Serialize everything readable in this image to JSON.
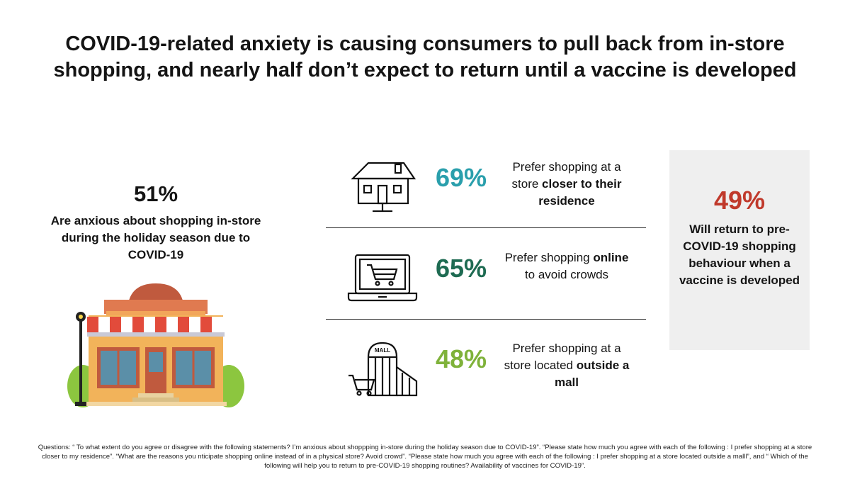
{
  "title": "COVID-19-related anxiety is causing consumers to pull back from in-store shopping, and nearly half don’t expect to return until a vaccine is developed",
  "left_stat": {
    "percent": "51%",
    "description": "Are anxious about shopping in-store during the holiday season due to COVID-19",
    "icon": "storefront-icon"
  },
  "rows": [
    {
      "icon": "house-icon",
      "percent": "69%",
      "color": "#2a9fac",
      "text_pre": "Prefer shopping at a store ",
      "text_bold": "closer to their residence",
      "text_post": ""
    },
    {
      "icon": "laptop-cart-icon",
      "percent": "65%",
      "color": "#1e6b52",
      "text_pre": "Prefer shopping ",
      "text_bold": "online",
      "text_post": " to avoid crowds"
    },
    {
      "icon": "mall-cart-icon",
      "icon_label": "MALL",
      "percent": "48%",
      "color": "#7fb23a",
      "text_pre": "Prefer shopping at a store located ",
      "text_bold": "outside a mall",
      "text_post": ""
    }
  ],
  "callout": {
    "percent": "49%",
    "color": "#c0392b",
    "description": "Will return to pre-COVID-19 shopping behaviour when a vaccine is developed"
  },
  "footnote": "Questions: “ To what extent do you agree or disagree with the following statements? I’m anxious about shoppping in-store during the holiday season due to COVID-19”. “Please state how much you agree with each of the following : I prefer shopping at a store closer to my residence”. “What are the reasons you nticipate shopping online instead of in a physical store? Avoid crowd”. “Please state how much you agree with each of the following : I prefer shopping at a store located outside a malll”, and “ Which of the following will help you to return to pre-COVID-19 shopping routines? Availability of vaccines for COVID-19”."
}
